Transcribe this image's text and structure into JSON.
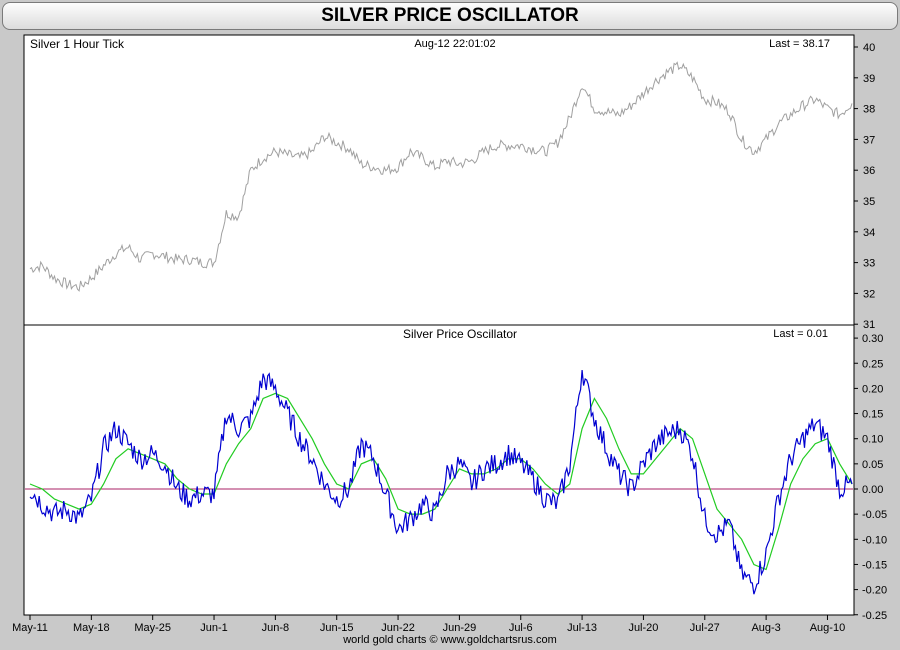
{
  "page": {
    "title": "SILVER PRICE OSCILLATOR",
    "credit": "world gold charts © www.goldchartsrus.com"
  },
  "top_panel": {
    "label": "Silver 1 Hour Tick",
    "timestamp": "Aug-12  22:01:02",
    "last": "Last = 38.17"
  },
  "bottom_panel": {
    "label": "Silver Price Oscillator",
    "last": "Last = 0.01"
  },
  "colors": {
    "price": "#a0a0a0",
    "oscillator": "#0000d0",
    "signal": "#22cc22",
    "zero_line": "#aa2266"
  },
  "chart_data": [
    {
      "type": "line",
      "title": "Silver 1 Hour Tick",
      "xlabel": "",
      "ylabel": "",
      "ylim": [
        31,
        40.3
      ],
      "yticks": [
        31,
        32,
        33,
        34,
        35,
        36,
        37,
        38,
        39,
        40
      ],
      "x_tick_labels": [
        "May-11",
        "May-18",
        "May-25",
        "Jun-1",
        "Jun-8",
        "Jun-15",
        "Jun-22",
        "Jun-29",
        "Jul-6",
        "Jul-13",
        "Jul-20",
        "Jul-27",
        "Aug-3",
        "Aug-10"
      ],
      "grid": false,
      "series": [
        {
          "name": "Silver 1 Hour Tick",
          "color": "#a0a0a0",
          "points": [
            [
              "May-11",
              32.8
            ],
            [
              "May-12",
              32.9
            ],
            [
              "May-13",
              32.5
            ],
            [
              "May-14",
              32.3
            ],
            [
              "May-15",
              32.2
            ],
            [
              "May-18",
              32.5
            ],
            [
              "May-19",
              32.9
            ],
            [
              "May-20",
              33.3
            ],
            [
              "May-21",
              33.5
            ],
            [
              "May-22",
              33.1
            ],
            [
              "May-25",
              33.3
            ],
            [
              "May-26",
              33.2
            ],
            [
              "May-27",
              33.1
            ],
            [
              "May-28",
              33.1
            ],
            [
              "May-29",
              33.0
            ],
            [
              "Jun-1",
              33.0
            ],
            [
              "Jun-2",
              34.6
            ],
            [
              "Jun-3",
              34.5
            ],
            [
              "Jun-4",
              36.0
            ],
            [
              "Jun-5",
              36.4
            ],
            [
              "Jun-8",
              36.6
            ],
            [
              "Jun-9",
              36.5
            ],
            [
              "Jun-10",
              36.4
            ],
            [
              "Jun-11",
              36.6
            ],
            [
              "Jun-12",
              37.1
            ],
            [
              "Jun-15",
              36.9
            ],
            [
              "Jun-16",
              36.7
            ],
            [
              "Jun-17",
              36.2
            ],
            [
              "Jun-18",
              36.1
            ],
            [
              "Jun-19",
              36.0
            ],
            [
              "Jun-22",
              36.1
            ],
            [
              "Jun-23",
              36.6
            ],
            [
              "Jun-24",
              36.4
            ],
            [
              "Jun-25",
              36.1
            ],
            [
              "Jun-26",
              36.3
            ],
            [
              "Jun-29",
              36.2
            ],
            [
              "Jun-30",
              36.3
            ],
            [
              "Jul-1",
              36.6
            ],
            [
              "Jul-2",
              36.8
            ],
            [
              "Jul-3",
              36.8
            ],
            [
              "Jul-6",
              36.8
            ],
            [
              "Jul-7",
              36.7
            ],
            [
              "Jul-8",
              36.6
            ],
            [
              "Jul-9",
              36.9
            ],
            [
              "Jul-10",
              37.7
            ],
            [
              "Jul-13",
              38.8
            ],
            [
              "Jul-14",
              38.0
            ],
            [
              "Jul-15",
              37.9
            ],
            [
              "Jul-16",
              37.8
            ],
            [
              "Jul-17",
              38.1
            ],
            [
              "Jul-20",
              38.5
            ],
            [
              "Jul-21",
              38.9
            ],
            [
              "Jul-22",
              39.2
            ],
            [
              "Jul-23",
              39.4
            ],
            [
              "Jul-24",
              39.0
            ],
            [
              "Jul-27",
              38.3
            ],
            [
              "Jul-28",
              38.2
            ],
            [
              "Jul-29",
              37.9
            ],
            [
              "Jul-30",
              37.0
            ],
            [
              "Jul-31",
              36.6
            ],
            [
              "Aug-3",
              37.0
            ],
            [
              "Aug-4",
              37.5
            ],
            [
              "Aug-5",
              37.8
            ],
            [
              "Aug-6",
              38.1
            ],
            [
              "Aug-7",
              38.3
            ],
            [
              "Aug-10",
              38.0
            ],
            [
              "Aug-11",
              37.8
            ],
            [
              "Aug-12",
              38.17
            ]
          ]
        }
      ]
    },
    {
      "type": "line",
      "title": "Silver Price Oscillator",
      "xlabel": "",
      "ylabel": "",
      "ylim": [
        -0.25,
        0.3
      ],
      "yticks": [
        -0.25,
        -0.2,
        -0.15,
        -0.1,
        -0.05,
        0.0,
        0.05,
        0.1,
        0.15,
        0.2,
        0.25,
        0.3
      ],
      "ytick_labels": [
        "-0.25",
        "-0.20",
        "-0.15",
        "-0.10",
        "-0.05",
        "0.00",
        "0.05",
        "0.10",
        "0.15",
        "0.20",
        "0.25",
        "0.30"
      ],
      "x_tick_labels": [
        "May-11",
        "May-18",
        "May-25",
        "Jun-1",
        "Jun-8",
        "Jun-15",
        "Jun-22",
        "Jun-29",
        "Jul-6",
        "Jul-13",
        "Jul-20",
        "Jul-27",
        "Aug-3",
        "Aug-10"
      ],
      "grid": false,
      "reference_line": 0.0,
      "series": [
        {
          "name": "Oscillator",
          "color": "#0000d0",
          "points": [
            [
              "May-11",
              0.0
            ],
            [
              "May-12",
              -0.03
            ],
            [
              "May-13",
              -0.05
            ],
            [
              "May-14",
              -0.04
            ],
            [
              "May-15",
              -0.06
            ],
            [
              "May-18",
              -0.02
            ],
            [
              "May-19",
              0.08
            ],
            [
              "May-20",
              0.12
            ],
            [
              "May-21",
              0.09
            ],
            [
              "May-22",
              0.06
            ],
            [
              "May-25",
              0.07
            ],
            [
              "May-26",
              0.05
            ],
            [
              "May-27",
              0.0
            ],
            [
              "May-28",
              -0.02
            ],
            [
              "May-29",
              -0.01
            ],
            [
              "Jun-1",
              -0.01
            ],
            [
              "Jun-2",
              0.15
            ],
            [
              "Jun-3",
              0.12
            ],
            [
              "Jun-4",
              0.14
            ],
            [
              "Jun-5",
              0.22
            ],
            [
              "Jun-8",
              0.2
            ],
            [
              "Jun-9",
              0.15
            ],
            [
              "Jun-10",
              0.1
            ],
            [
              "Jun-11",
              0.06
            ],
            [
              "Jun-12",
              0.01
            ],
            [
              "Jun-15",
              -0.02
            ],
            [
              "Jun-16",
              0.0
            ],
            [
              "Jun-17",
              0.09
            ],
            [
              "Jun-18",
              0.06
            ],
            [
              "Jun-19",
              -0.01
            ],
            [
              "Jun-22",
              -0.08
            ],
            [
              "Jun-23",
              -0.06
            ],
            [
              "Jun-24",
              -0.03
            ],
            [
              "Jun-25",
              -0.05
            ],
            [
              "Jun-26",
              0.03
            ],
            [
              "Jun-29",
              0.05
            ],
            [
              "Jun-30",
              0.01
            ],
            [
              "Jul-1",
              0.04
            ],
            [
              "Jul-2",
              0.05
            ],
            [
              "Jul-3",
              0.07
            ],
            [
              "Jul-6",
              0.05
            ],
            [
              "Jul-7",
              0.02
            ],
            [
              "Jul-8",
              -0.02
            ],
            [
              "Jul-9",
              -0.03
            ],
            [
              "Jul-10",
              0.05
            ],
            [
              "Jul-13",
              0.24
            ],
            [
              "Jul-14",
              0.14
            ],
            [
              "Jul-15",
              0.08
            ],
            [
              "Jul-16",
              0.03
            ],
            [
              "Jul-17",
              0.0
            ],
            [
              "Jul-20",
              0.05
            ],
            [
              "Jul-21",
              0.09
            ],
            [
              "Jul-22",
              0.11
            ],
            [
              "Jul-23",
              0.12
            ],
            [
              "Jul-24",
              0.07
            ],
            [
              "Jul-27",
              -0.06
            ],
            [
              "Jul-28",
              -0.09
            ],
            [
              "Jul-29",
              -0.07
            ],
            [
              "Jul-30",
              -0.17
            ],
            [
              "Jul-31",
              -0.19
            ],
            [
              "Aug-3",
              -0.13
            ],
            [
              "Aug-4",
              -0.02
            ],
            [
              "Aug-5",
              0.06
            ],
            [
              "Aug-6",
              0.1
            ],
            [
              "Aug-7",
              0.13
            ],
            [
              "Aug-10",
              0.1
            ],
            [
              "Aug-11",
              0.0
            ],
            [
              "Aug-12",
              0.01
            ]
          ]
        },
        {
          "name": "Signal",
          "color": "#22cc22",
          "points": [
            [
              "May-11",
              0.01
            ],
            [
              "May-12",
              0.0
            ],
            [
              "May-13",
              -0.02
            ],
            [
              "May-14",
              -0.03
            ],
            [
              "May-15",
              -0.04
            ],
            [
              "May-18",
              -0.03
            ],
            [
              "May-19",
              0.01
            ],
            [
              "May-20",
              0.06
            ],
            [
              "May-21",
              0.08
            ],
            [
              "May-22",
              0.07
            ],
            [
              "May-25",
              0.06
            ],
            [
              "May-26",
              0.05
            ],
            [
              "May-27",
              0.02
            ],
            [
              "May-28",
              0.0
            ],
            [
              "May-29",
              -0.01
            ],
            [
              "Jun-1",
              -0.01
            ],
            [
              "Jun-2",
              0.05
            ],
            [
              "Jun-3",
              0.09
            ],
            [
              "Jun-4",
              0.12
            ],
            [
              "Jun-5",
              0.18
            ],
            [
              "Jun-8",
              0.19
            ],
            [
              "Jun-9",
              0.18
            ],
            [
              "Jun-10",
              0.14
            ],
            [
              "Jun-11",
              0.1
            ],
            [
              "Jun-12",
              0.05
            ],
            [
              "Jun-15",
              0.01
            ],
            [
              "Jun-16",
              0.0
            ],
            [
              "Jun-17",
              0.05
            ],
            [
              "Jun-18",
              0.06
            ],
            [
              "Jun-19",
              0.02
            ],
            [
              "Jun-22",
              -0.04
            ],
            [
              "Jun-23",
              -0.05
            ],
            [
              "Jun-24",
              -0.05
            ],
            [
              "Jun-25",
              -0.04
            ],
            [
              "Jun-26",
              0.0
            ],
            [
              "Jun-29",
              0.04
            ],
            [
              "Jun-30",
              0.03
            ],
            [
              "Jul-1",
              0.03
            ],
            [
              "Jul-2",
              0.04
            ],
            [
              "Jul-3",
              0.06
            ],
            [
              "Jul-6",
              0.06
            ],
            [
              "Jul-7",
              0.04
            ],
            [
              "Jul-8",
              0.01
            ],
            [
              "Jul-9",
              -0.01
            ],
            [
              "Jul-10",
              0.01
            ],
            [
              "Jul-13",
              0.12
            ],
            [
              "Jul-14",
              0.18
            ],
            [
              "Jul-15",
              0.14
            ],
            [
              "Jul-16",
              0.08
            ],
            [
              "Jul-17",
              0.03
            ],
            [
              "Jul-20",
              0.03
            ],
            [
              "Jul-21",
              0.06
            ],
            [
              "Jul-22",
              0.09
            ],
            [
              "Jul-23",
              0.12
            ],
            [
              "Jul-24",
              0.1
            ],
            [
              "Jul-27",
              0.03
            ],
            [
              "Jul-28",
              -0.04
            ],
            [
              "Jul-29",
              -0.07
            ],
            [
              "Jul-30",
              -0.1
            ],
            [
              "Jul-31",
              -0.15
            ],
            [
              "Aug-3",
              -0.16
            ],
            [
              "Aug-4",
              -0.08
            ],
            [
              "Aug-5",
              0.01
            ],
            [
              "Aug-6",
              0.06
            ],
            [
              "Aug-7",
              0.09
            ],
            [
              "Aug-10",
              0.1
            ],
            [
              "Aug-11",
              0.05
            ],
            [
              "Aug-12",
              0.01
            ]
          ]
        }
      ]
    }
  ]
}
